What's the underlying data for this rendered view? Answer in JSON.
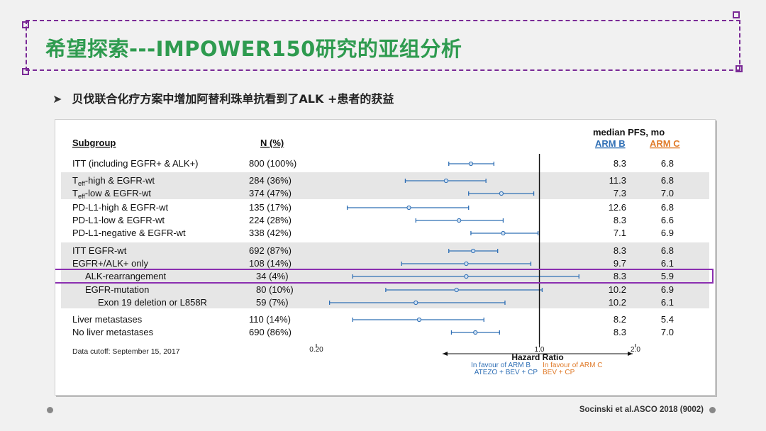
{
  "slide": {
    "title": "希望探索---IMPOWER150研究的亚组分析",
    "bullet": "贝伐联合化疗方案中增加阿替利珠单抗看到了ALK +患者的获益",
    "reference": "Socinski et al.ASCO 2018 (9002)"
  },
  "colors": {
    "accent_purple": "#7a2a96",
    "title_green": "#2e9b4f",
    "arm_b": "#2f6fb5",
    "arm_c": "#e07b2a"
  },
  "chart_data": {
    "type": "forest",
    "headers": {
      "subgroup": "Subgroup",
      "n": "N (%)",
      "pfs": "median PFS, mo",
      "arm_b": "ARM B",
      "arm_c": "ARM C"
    },
    "x_axis": {
      "scale": "log",
      "range": [
        0.2,
        2.0
      ],
      "ticks": [
        "0.20",
        "1.0",
        "2.0"
      ],
      "label": "Hazard Ratio"
    },
    "favour_b": [
      "In favour of ARM B",
      "ATEZO + BEV + CP"
    ],
    "favour_c": [
      "In favour of ARM C",
      "BEV + CP"
    ],
    "cutoff": "Data cutoff: September 15, 2017",
    "highlight_row": 10,
    "rows": [
      {
        "label": "ITT (including EGFR+ & ALK+)",
        "n": "800 (100%)",
        "hr": 0.61,
        "lo": 0.52,
        "hi": 0.72,
        "arm_b": "8.3",
        "arm_c": "6.8",
        "indent": 0,
        "shaded": false
      },
      {
        "label": "T",
        "sub": "eff",
        "suffix": "-high & EGFR-wt",
        "n": "284 (36%)",
        "hr": 0.51,
        "lo": 0.38,
        "hi": 0.68,
        "arm_b": "11.3",
        "arm_c": "6.8",
        "indent": 0,
        "shaded": true
      },
      {
        "label": "T",
        "sub": "eff",
        "suffix": "-low & EGFR-wt",
        "n": "374 (47%)",
        "hr": 0.76,
        "lo": 0.6,
        "hi": 0.96,
        "arm_b": "7.3",
        "arm_c": "7.0",
        "indent": 0,
        "shaded": true
      },
      {
        "label": "PD-L1-high & EGFR-wt",
        "n": "135 (17%)",
        "hr": 0.39,
        "lo": 0.25,
        "hi": 0.6,
        "arm_b": "12.6",
        "arm_c": "6.8",
        "indent": 0,
        "shaded": false
      },
      {
        "label": "PD-L1-low & EGFR-wt",
        "n": "224 (28%)",
        "hr": 0.56,
        "lo": 0.41,
        "hi": 0.77,
        "arm_b": "8.3",
        "arm_c": "6.6",
        "indent": 0,
        "shaded": false
      },
      {
        "label": "PD-L1-negative & EGFR-wt",
        "n": "338 (42%)",
        "hr": 0.77,
        "lo": 0.61,
        "hi": 0.99,
        "arm_b": "7.1",
        "arm_c": "6.9",
        "indent": 0,
        "shaded": false
      },
      {
        "label": "ITT EGFR-wt",
        "n": "692 (87%)",
        "hr": 0.62,
        "lo": 0.52,
        "hi": 0.74,
        "arm_b": "8.3",
        "arm_c": "6.8",
        "indent": 0,
        "shaded": true
      },
      {
        "label": "EGFR+/ALK+ only",
        "n": "108 (14%)",
        "hr": 0.59,
        "lo": 0.37,
        "hi": 0.94,
        "arm_b": "9.7",
        "arm_c": "6.1",
        "indent": 0,
        "shaded": true
      },
      {
        "label": "ALK-rearrangement",
        "n": "34 (4%)",
        "hr": 0.59,
        "lo": 0.26,
        "hi": 1.33,
        "arm_b": "8.3",
        "arm_c": "5.9",
        "indent": 1,
        "shaded": true
      },
      {
        "label": "EGFR-mutation",
        "n": "80 (10%)",
        "hr": 0.55,
        "lo": 0.33,
        "hi": 1.02,
        "arm_b": "10.2",
        "arm_c": "6.9",
        "indent": 1,
        "shaded": true
      },
      {
        "label": "Exon 19 deletion or L858R",
        "n": "59 (7%)",
        "hr": 0.41,
        "lo": 0.22,
        "hi": 0.78,
        "arm_b": "10.2",
        "arm_c": "6.1",
        "indent": 2,
        "shaded": true
      },
      {
        "label": "Liver metastases",
        "n": "110 (14%)",
        "hr": 0.42,
        "lo": 0.26,
        "hi": 0.67,
        "arm_b": "8.2",
        "arm_c": "5.4",
        "indent": 0,
        "shaded": false
      },
      {
        "label": "No liver metastases",
        "n": "690 (86%)",
        "hr": 0.63,
        "lo": 0.53,
        "hi": 0.75,
        "arm_b": "8.3",
        "arm_c": "7.0",
        "indent": 0,
        "shaded": false
      }
    ]
  }
}
